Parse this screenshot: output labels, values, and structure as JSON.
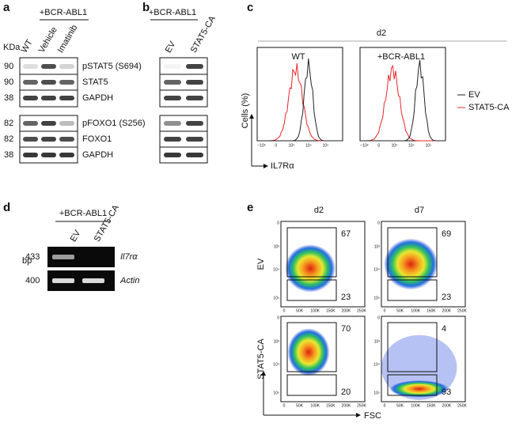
{
  "panels": {
    "a": {
      "label": "a",
      "condition": "+BCR-ABL1",
      "unit": "KDa",
      "lanes": [
        "WT",
        "Vehicle",
        "Imatinib"
      ],
      "rows": [
        {
          "mw": 90,
          "name": "pSTAT5 (S694)"
        },
        {
          "mw": 90,
          "name": "STAT5"
        },
        {
          "mw": 38,
          "name": "GAPDH"
        },
        {
          "mw": 82,
          "name": "pFOXO1 (S256)"
        },
        {
          "mw": 82,
          "name": "FOXO1"
        },
        {
          "mw": 38,
          "name": "GAPDH"
        }
      ]
    },
    "b": {
      "label": "b",
      "condition": "+BCR-ABL1",
      "lanes": [
        "EV",
        "STAT5-CA"
      ]
    },
    "c": {
      "label": "c",
      "timepoint": "d2",
      "plots": [
        "WT",
        "+BCR-ABL1"
      ],
      "y_label": "Cells (%)",
      "x_label": "IL7Rα",
      "x_ticks": [
        "−10³",
        "0",
        "10³",
        "10⁴",
        "10⁵"
      ],
      "legend": [
        {
          "name": "EV",
          "color": "#222222"
        },
        {
          "name": "STAT5-CA",
          "color": "#e8262a"
        }
      ]
    },
    "d": {
      "label": "d",
      "condition": "+BCR-ABL1",
      "unit": "bp",
      "lanes": [
        "EV",
        "STAT5-CA"
      ],
      "rows": [
        {
          "size": 433,
          "gene": "Il7rα"
        },
        {
          "size": 400,
          "gene": "Actin"
        }
      ]
    },
    "e": {
      "label": "e",
      "columns": [
        "d2",
        "d7"
      ],
      "x_label": "FSC",
      "y_ticks": [
        "0",
        "10³",
        "10⁴",
        "10⁵"
      ],
      "x_ticks": [
        "0",
        "50K",
        "100K",
        "150K",
        "200K",
        "250K"
      ],
      "rows": [
        {
          "name": "EV",
          "gates": [
            [
              67,
              23
            ],
            [
              69,
              23
            ]
          ]
        },
        {
          "name": "STAT5-CA",
          "gates": [
            [
              70,
              20
            ],
            [
              4,
              93
            ]
          ]
        }
      ]
    }
  }
}
